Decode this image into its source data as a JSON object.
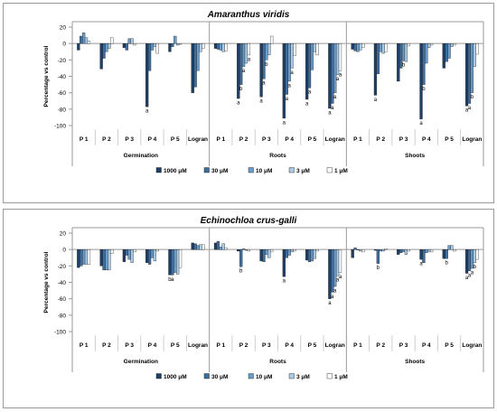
{
  "colors": {
    "1000 μM": "#1f3f66",
    "30 μM": "#3e6e9e",
    "10 μM": "#6b9bc9",
    "3 μM": "#a9cbe8",
    "1 μM": "#ffffff"
  },
  "chart_data": [
    {
      "type": "bar",
      "title": "Amaranthus viridis",
      "ylabel": "Percentage vs control",
      "ylim": [
        -100,
        20
      ],
      "yticks": [
        20,
        0,
        -20,
        -40,
        -60,
        -80,
        -100
      ],
      "groups": [
        "Germination",
        "Roots",
        "Shoots"
      ],
      "categories": [
        "P 1",
        "P 2",
        "P 3",
        "P 4",
        "P 5",
        "Logran"
      ],
      "series_names": [
        "1000 μM",
        "30 μM",
        "10 μM",
        "3 μM",
        "1 μM"
      ],
      "data": {
        "Germination": [
          [
            -8,
            9,
            13,
            7,
            3
          ],
          [
            -31,
            -18,
            -10,
            -6,
            7
          ],
          [
            -5,
            -8,
            6,
            6,
            -2
          ],
          [
            -77,
            -33,
            -8,
            -4,
            -12
          ],
          [
            -10,
            -4,
            9,
            -2,
            -1
          ],
          [
            -60,
            -53,
            -33,
            -10,
            -6
          ]
        ],
        "Roots": [
          [
            -6,
            -7,
            -8,
            -10,
            -9
          ],
          [
            -67,
            -50,
            -28,
            -24,
            -14
          ],
          [
            -65,
            -43,
            -20,
            -14,
            9
          ],
          [
            -91,
            -62,
            -46,
            -30,
            -15
          ],
          [
            -68,
            -54,
            -32,
            -10,
            -14
          ],
          [
            -79,
            -73,
            -60,
            -38,
            -33
          ]
        ],
        "Shoots": [
          [
            -7,
            -9,
            -10,
            -8,
            -5
          ],
          [
            -63,
            -37,
            -10,
            -12,
            -10
          ],
          [
            -46,
            -30,
            -21,
            -22,
            -3
          ],
          [
            -92,
            -50,
            -24,
            -5,
            -2
          ],
          [
            -30,
            -22,
            -18,
            -4,
            -2
          ],
          [
            -76,
            -73,
            -60,
            -28,
            -13
          ]
        ]
      },
      "annotations": {
        "Germination": [
          [
            "",
            "",
            "",
            "",
            ""
          ],
          [
            "",
            "",
            "",
            "",
            ""
          ],
          [
            "",
            "",
            "",
            "",
            ""
          ],
          [
            "a",
            "",
            "",
            "",
            ""
          ],
          [
            "",
            "",
            "",
            "",
            ""
          ],
          [
            "",
            "",
            "",
            "",
            ""
          ]
        ],
        "Roots": [
          [
            "",
            "",
            "",
            "",
            ""
          ],
          [
            "a",
            "b",
            "a",
            "",
            "a"
          ],
          [
            "a",
            "a",
            "b",
            "",
            ""
          ],
          [
            "a",
            "a",
            "a",
            "a",
            ""
          ],
          [
            "a",
            "a",
            "",
            "",
            ""
          ],
          [
            "a",
            "a",
            "a",
            "a",
            "a"
          ]
        ],
        "Shoots": [
          [
            "",
            "",
            "",
            "",
            ""
          ],
          [
            "a",
            "",
            "",
            "",
            ""
          ],
          [
            "",
            "",
            "b",
            "",
            ""
          ],
          [
            "a",
            "b",
            "",
            "",
            ""
          ],
          [
            "",
            "",
            "",
            "",
            ""
          ],
          [
            "a",
            "a",
            "b",
            "",
            ""
          ]
        ]
      }
    },
    {
      "type": "bar",
      "title": "Echinochloa crus-galli",
      "ylabel": "Percentage vs control",
      "ylim": [
        -100,
        20
      ],
      "yticks": [
        20,
        0,
        -20,
        -40,
        -60,
        -80,
        -100
      ],
      "groups": [
        "Germination",
        "Roots",
        "Shoots"
      ],
      "categories": [
        "P 1",
        "P 2",
        "P 3",
        "P 4",
        "P 5",
        "Logran"
      ],
      "series_names": [
        "1000 μM",
        "30 μM",
        "10 μM",
        "3 μM",
        "1 μM"
      ],
      "data": {
        "Germination": [
          [
            -22,
            -20,
            -18,
            -18,
            -18
          ],
          [
            -20,
            -25,
            -25,
            -25,
            -5
          ],
          [
            -15,
            -7,
            -12,
            -16,
            -3
          ],
          [
            -16,
            -18,
            -10,
            -14,
            -2
          ],
          [
            -31,
            -31,
            -28,
            -30,
            -22
          ],
          [
            8,
            7,
            5,
            6,
            6
          ]
        ],
        "Roots": [
          [
            8,
            10,
            3,
            7,
            2
          ],
          [
            -2,
            -21,
            1,
            -1,
            -2
          ],
          [
            -14,
            -15,
            -6,
            -10,
            -3
          ],
          [
            -33,
            -10,
            -7,
            -3,
            -2
          ],
          [
            -13,
            -15,
            -14,
            -11,
            -2
          ],
          [
            -60,
            -52,
            -45,
            -32,
            -28
          ]
        ],
        "Shoots": [
          [
            -10,
            2,
            0,
            -2,
            -3
          ],
          [
            -1,
            -17,
            -2,
            -2,
            1
          ],
          [
            -6,
            -4,
            -3,
            -6,
            -2
          ],
          [
            -12,
            -16,
            -4,
            -3,
            -3
          ],
          [
            -11,
            -11,
            5,
            5,
            -2
          ],
          [
            -29,
            -26,
            -23,
            -16,
            -12
          ]
        ]
      },
      "annotations": {
        "Germination": [
          [
            "",
            "",
            "",
            "",
            ""
          ],
          [
            "",
            "",
            "",
            "",
            ""
          ],
          [
            "",
            "",
            "",
            "",
            ""
          ],
          [
            "",
            "",
            "",
            "",
            ""
          ],
          [
            "b",
            "a",
            "",
            "",
            ""
          ],
          [
            "",
            "",
            "",
            "",
            ""
          ]
        ],
        "Roots": [
          [
            "",
            "",
            "",
            "",
            ""
          ],
          [
            "",
            "b",
            "",
            "",
            ""
          ],
          [
            "",
            "",
            "",
            "",
            ""
          ],
          [
            "a",
            "",
            "",
            "",
            ""
          ],
          [
            "",
            "",
            "",
            "",
            ""
          ],
          [
            "a",
            "a",
            "a",
            "a",
            "a"
          ]
        ],
        "Shoots": [
          [
            "",
            "",
            "",
            "",
            ""
          ],
          [
            "",
            "b",
            "",
            "",
            ""
          ],
          [
            "",
            "",
            "",
            "",
            ""
          ],
          [
            "a",
            "",
            "",
            "",
            ""
          ],
          [
            "",
            "b",
            "",
            "",
            ""
          ],
          [
            "a",
            "a",
            "a",
            "b",
            ""
          ]
        ]
      }
    }
  ]
}
